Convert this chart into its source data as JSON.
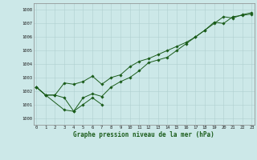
{
  "xlabel": "Graphe pression niveau de la mer (hPa)",
  "background_color": "#cce8e8",
  "line_color": "#1a5c1a",
  "grid_color": "#b0d0d0",
  "hours": [
    0,
    1,
    2,
    3,
    4,
    5,
    6,
    7,
    8,
    9,
    10,
    11,
    12,
    13,
    14,
    15,
    16,
    17,
    18,
    19,
    20,
    21,
    22,
    23
  ],
  "line1": [
    1002.3,
    1001.7,
    null,
    1000.6,
    1000.5,
    1001.0,
    1001.5,
    1001.0,
    null,
    null,
    null,
    null,
    null,
    null,
    null,
    null,
    null,
    null,
    null,
    null,
    null,
    null,
    null,
    null
  ],
  "line2": [
    1002.3,
    1001.7,
    1001.7,
    1001.5,
    1000.5,
    1001.5,
    1001.8,
    1001.6,
    1002.3,
    1002.7,
    1003.0,
    1003.5,
    1004.1,
    1004.3,
    1004.5,
    1005.0,
    1005.5,
    1006.0,
    1006.5,
    1007.1,
    1007.0,
    1007.5,
    1007.6,
    1007.7
  ],
  "line3": [
    1002.3,
    1001.7,
    1001.7,
    1002.6,
    1002.5,
    1002.7,
    1003.1,
    1002.5,
    1003.0,
    1003.2,
    1003.8,
    1004.2,
    1004.4,
    1004.7,
    1005.0,
    1005.3,
    1005.6,
    1006.0,
    1006.5,
    1007.0,
    1007.5,
    1007.4,
    1007.65,
    1007.8
  ],
  "ylim": [
    999.5,
    1008.5
  ],
  "yticks": [
    1000,
    1001,
    1002,
    1003,
    1004,
    1005,
    1006,
    1007,
    1008
  ],
  "xticks": [
    0,
    1,
    2,
    3,
    4,
    5,
    6,
    7,
    8,
    9,
    10,
    11,
    12,
    13,
    14,
    15,
    16,
    17,
    18,
    19,
    20,
    21,
    22,
    23
  ]
}
